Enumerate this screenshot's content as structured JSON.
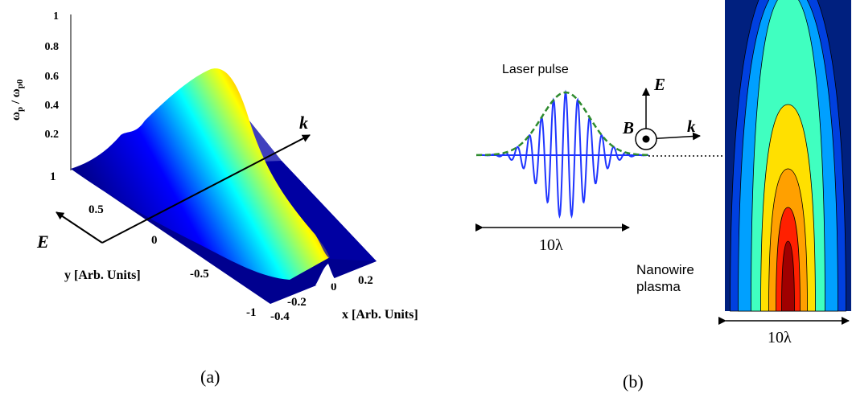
{
  "panel_a": {
    "z_axis_label_main": "ω",
    "z_axis_label_sub1": "p",
    "z_axis_label_sep": " / ω",
    "z_axis_label_sub2": "p0",
    "z_ticks": [
      "1",
      "0.8",
      "0.6",
      "0.4",
      "0.2"
    ],
    "y_ticks": [
      "1",
      "0.5",
      "0",
      "-0.5",
      "-1"
    ],
    "x_ticks": [
      "-0.4",
      "-0.2",
      "0",
      "0.2"
    ],
    "y_axis_label": "y [Arb. Units]",
    "x_axis_label": "x [Arb. Units]",
    "k_label": "k",
    "E_label": "E",
    "caption": "(a)",
    "colormap": [
      "#00008f",
      "#0000ff",
      "#00ffff",
      "#ffff00",
      "#ff0000",
      "#800000"
    ]
  },
  "panel_b": {
    "laser_pulse_label": "Laser pulse",
    "width_label_left": "10λ",
    "width_label_right": "10λ",
    "E_label": "E",
    "B_label": "B",
    "k_label": "k",
    "nanowire_label_line1": "Nanowire",
    "nanowire_label_line2": "plasma",
    "caption": "(b)",
    "wave_color": "#1f35ff",
    "envelope_color": "#2e8b2e",
    "contour_colors": [
      "#00207f",
      "#0040df",
      "#00a0ff",
      "#40ffc0",
      "#ffe000",
      "#ffa000",
      "#ff2000",
      "#a00000"
    ]
  }
}
